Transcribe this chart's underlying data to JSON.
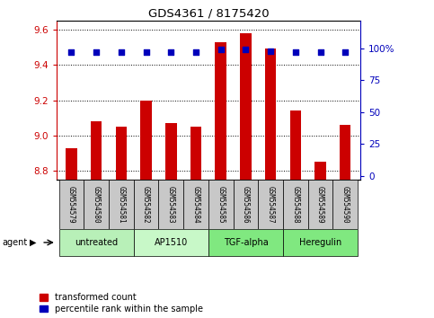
{
  "title": "GDS4361 / 8175420",
  "samples": [
    "GSM554579",
    "GSM554580",
    "GSM554581",
    "GSM554582",
    "GSM554583",
    "GSM554584",
    "GSM554585",
    "GSM554586",
    "GSM554587",
    "GSM554588",
    "GSM554589",
    "GSM554590"
  ],
  "red_values": [
    8.93,
    9.08,
    9.05,
    9.2,
    9.07,
    9.05,
    9.53,
    9.58,
    9.49,
    9.14,
    8.85,
    9.06
  ],
  "blue_values_pct": [
    97,
    97,
    97,
    97,
    97,
    97,
    99,
    99,
    98,
    97,
    97,
    97
  ],
  "ylim_left": [
    8.75,
    9.65
  ],
  "ylim_right": [
    -3.125,
    121.875
  ],
  "yticks_left": [
    8.8,
    9.0,
    9.2,
    9.4,
    9.6
  ],
  "yticks_right": [
    0,
    25,
    50,
    75,
    100
  ],
  "ytick_labels_right": [
    "0",
    "25",
    "50",
    "75",
    "100%"
  ],
  "groups": [
    {
      "label": "untreated",
      "start": 0,
      "end": 3,
      "color": "#b8f0b8"
    },
    {
      "label": "AP1510",
      "start": 3,
      "end": 6,
      "color": "#c8f8c8"
    },
    {
      "label": "TGF-alpha",
      "start": 6,
      "end": 9,
      "color": "#80e880"
    },
    {
      "label": "Heregulin",
      "start": 9,
      "end": 12,
      "color": "#80e880"
    }
  ],
  "bar_color": "#cc0000",
  "dot_color": "#0000bb",
  "base_value": 8.75,
  "legend_labels": [
    "transformed count",
    "percentile rank within the sample"
  ],
  "legend_colors": [
    "#cc0000",
    "#0000bb"
  ],
  "bg_color": "#ffffff",
  "grid_color": "#000000",
  "sample_box_color": "#c8c8c8",
  "left_axis_color": "#cc0000",
  "right_axis_color": "#0000bb"
}
